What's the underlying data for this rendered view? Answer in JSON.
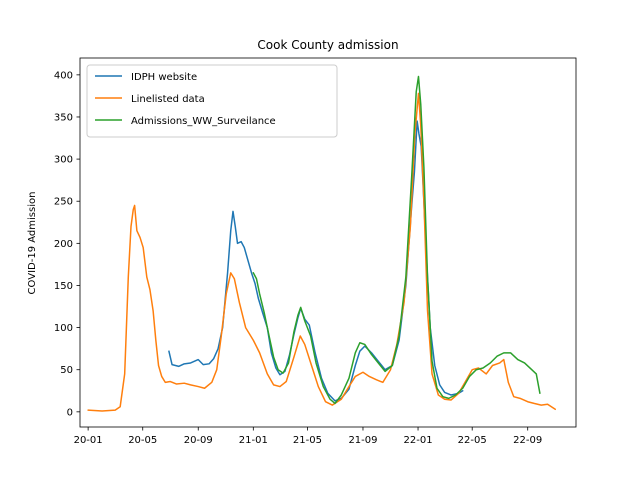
{
  "chart_data": {
    "type": "line",
    "title": "Cook County admission",
    "xlabel": "",
    "ylabel": "COVID-19 Admission",
    "x_axis_type": "date",
    "xlim": [
      "2019-12-14",
      "2022-12-17"
    ],
    "ylim": [
      -18,
      420
    ],
    "x_ticks": [
      {
        "date": "2020-01-01",
        "label": "20-01"
      },
      {
        "date": "2020-05-01",
        "label": "20-05"
      },
      {
        "date": "2020-09-01",
        "label": "20-09"
      },
      {
        "date": "2021-01-01",
        "label": "21-01"
      },
      {
        "date": "2021-05-01",
        "label": "21-05"
      },
      {
        "date": "2021-09-01",
        "label": "21-09"
      },
      {
        "date": "2022-01-01",
        "label": "22-01"
      },
      {
        "date": "2022-05-01",
        "label": "22-05"
      },
      {
        "date": "2022-09-01",
        "label": "22-09"
      }
    ],
    "y_ticks": [
      0,
      50,
      100,
      150,
      200,
      250,
      300,
      350,
      400
    ],
    "grid": false,
    "legend_position": "top-left",
    "series": [
      {
        "name": "IDPH website",
        "color": "#1f77b4",
        "points": [
          [
            "2020-06-28",
            72
          ],
          [
            "2020-07-05",
            56
          ],
          [
            "2020-07-20",
            54
          ],
          [
            "2020-08-01",
            57
          ],
          [
            "2020-08-15",
            58
          ],
          [
            "2020-09-01",
            62
          ],
          [
            "2020-09-12",
            56
          ],
          [
            "2020-09-25",
            57
          ],
          [
            "2020-10-05",
            63
          ],
          [
            "2020-10-15",
            75
          ],
          [
            "2020-10-25",
            100
          ],
          [
            "2020-11-05",
            165
          ],
          [
            "2020-11-12",
            215
          ],
          [
            "2020-11-17",
            238
          ],
          [
            "2020-11-22",
            220
          ],
          [
            "2020-11-27",
            200
          ],
          [
            "2020-12-05",
            202
          ],
          [
            "2020-12-12",
            195
          ],
          [
            "2020-12-20",
            180
          ],
          [
            "2020-12-28",
            165
          ],
          [
            "2021-01-05",
            152
          ],
          [
            "2021-01-12",
            135
          ],
          [
            "2021-01-22",
            117
          ],
          [
            "2021-02-01",
            100
          ],
          [
            "2021-02-10",
            70
          ],
          [
            "2021-02-20",
            52
          ],
          [
            "2021-03-01",
            44
          ],
          [
            "2021-03-12",
            48
          ],
          [
            "2021-03-22",
            67
          ],
          [
            "2021-04-01",
            92
          ],
          [
            "2021-04-10",
            112
          ],
          [
            "2021-04-16",
            123
          ],
          [
            "2021-04-25",
            110
          ],
          [
            "2021-05-05",
            103
          ],
          [
            "2021-05-18",
            70
          ],
          [
            "2021-06-01",
            40
          ],
          [
            "2021-06-15",
            22
          ],
          [
            "2021-07-01",
            13
          ],
          [
            "2021-07-15",
            16
          ],
          [
            "2021-08-01",
            27
          ],
          [
            "2021-08-15",
            55
          ],
          [
            "2021-08-25",
            72
          ],
          [
            "2021-09-05",
            78
          ],
          [
            "2021-09-20",
            70
          ],
          [
            "2021-10-05",
            60
          ],
          [
            "2021-10-20",
            50
          ],
          [
            "2021-11-05",
            55
          ],
          [
            "2021-11-20",
            85
          ],
          [
            "2021-12-05",
            150
          ],
          [
            "2021-12-18",
            245
          ],
          [
            "2021-12-24",
            285
          ],
          [
            "2021-12-30",
            345
          ],
          [
            "2022-01-03",
            330
          ],
          [
            "2022-01-08",
            315
          ],
          [
            "2022-01-13",
            260
          ],
          [
            "2022-01-20",
            180
          ],
          [
            "2022-01-28",
            100
          ],
          [
            "2022-02-07",
            55
          ],
          [
            "2022-02-18",
            32
          ],
          [
            "2022-03-01",
            23
          ],
          [
            "2022-03-15",
            20
          ],
          [
            "2022-04-01",
            22
          ],
          [
            "2022-04-10",
            25
          ]
        ]
      },
      {
        "name": "Linelisted data",
        "color": "#ff7f0e",
        "points": [
          [
            "2020-01-01",
            2
          ],
          [
            "2020-02-01",
            1
          ],
          [
            "2020-03-01",
            2
          ],
          [
            "2020-03-12",
            6
          ],
          [
            "2020-03-22",
            45
          ],
          [
            "2020-03-30",
            160
          ],
          [
            "2020-04-05",
            220
          ],
          [
            "2020-04-10",
            240
          ],
          [
            "2020-04-13",
            245
          ],
          [
            "2020-04-18",
            215
          ],
          [
            "2020-04-25",
            207
          ],
          [
            "2020-05-02",
            195
          ],
          [
            "2020-05-10",
            160
          ],
          [
            "2020-05-17",
            145
          ],
          [
            "2020-05-24",
            120
          ],
          [
            "2020-05-30",
            85
          ],
          [
            "2020-06-05",
            55
          ],
          [
            "2020-06-12",
            42
          ],
          [
            "2020-06-20",
            35
          ],
          [
            "2020-07-01",
            36
          ],
          [
            "2020-07-15",
            33
          ],
          [
            "2020-08-01",
            34
          ],
          [
            "2020-08-15",
            32
          ],
          [
            "2020-09-01",
            30
          ],
          [
            "2020-09-15",
            28
          ],
          [
            "2020-10-01",
            35
          ],
          [
            "2020-10-12",
            50
          ],
          [
            "2020-10-22",
            90
          ],
          [
            "2020-11-02",
            140
          ],
          [
            "2020-11-12",
            165
          ],
          [
            "2020-11-20",
            158
          ],
          [
            "2020-12-01",
            130
          ],
          [
            "2020-12-15",
            100
          ],
          [
            "2021-01-01",
            85
          ],
          [
            "2021-01-15",
            70
          ],
          [
            "2021-02-01",
            45
          ],
          [
            "2021-02-15",
            32
          ],
          [
            "2021-03-01",
            30
          ],
          [
            "2021-03-15",
            36
          ],
          [
            "2021-04-01",
            65
          ],
          [
            "2021-04-15",
            90
          ],
          [
            "2021-04-25",
            80
          ],
          [
            "2021-05-10",
            55
          ],
          [
            "2021-05-25",
            30
          ],
          [
            "2021-06-10",
            12
          ],
          [
            "2021-06-25",
            8
          ],
          [
            "2021-07-15",
            15
          ],
          [
            "2021-08-01",
            30
          ],
          [
            "2021-08-15",
            42
          ],
          [
            "2021-09-01",
            47
          ],
          [
            "2021-09-15",
            42
          ],
          [
            "2021-10-01",
            38
          ],
          [
            "2021-10-15",
            35
          ],
          [
            "2021-11-01",
            50
          ],
          [
            "2021-11-15",
            80
          ],
          [
            "2021-12-01",
            130
          ],
          [
            "2021-12-15",
            220
          ],
          [
            "2021-12-25",
            330
          ],
          [
            "2022-01-02",
            378
          ],
          [
            "2022-01-07",
            340
          ],
          [
            "2022-01-14",
            250
          ],
          [
            "2022-01-22",
            120
          ],
          [
            "2022-02-01",
            45
          ],
          [
            "2022-02-15",
            20
          ],
          [
            "2022-03-01",
            15
          ],
          [
            "2022-03-15",
            14
          ],
          [
            "2022-04-01",
            22
          ],
          [
            "2022-04-15",
            35
          ],
          [
            "2022-05-01",
            50
          ],
          [
            "2022-05-15",
            52
          ],
          [
            "2022-06-01",
            45
          ],
          [
            "2022-06-15",
            55
          ],
          [
            "2022-07-01",
            58
          ],
          [
            "2022-07-10",
            62
          ],
          [
            "2022-07-20",
            35
          ],
          [
            "2022-08-01",
            18
          ],
          [
            "2022-08-15",
            16
          ],
          [
            "2022-09-01",
            12
          ],
          [
            "2022-09-15",
            10
          ],
          [
            "2022-10-01",
            8
          ],
          [
            "2022-10-15",
            9
          ],
          [
            "2022-11-01",
            3
          ]
        ]
      },
      {
        "name": "Admissions_WW_Surveilance",
        "color": "#2ca02c",
        "points": [
          [
            "2021-01-01",
            165
          ],
          [
            "2021-01-08",
            158
          ],
          [
            "2021-01-15",
            140
          ],
          [
            "2021-01-25",
            118
          ],
          [
            "2021-02-05",
            90
          ],
          [
            "2021-02-15",
            65
          ],
          [
            "2021-02-25",
            50
          ],
          [
            "2021-03-08",
            46
          ],
          [
            "2021-03-20",
            58
          ],
          [
            "2021-04-01",
            95
          ],
          [
            "2021-04-10",
            115
          ],
          [
            "2021-04-16",
            124
          ],
          [
            "2021-04-25",
            108
          ],
          [
            "2021-05-08",
            90
          ],
          [
            "2021-05-20",
            58
          ],
          [
            "2021-06-05",
            30
          ],
          [
            "2021-06-20",
            15
          ],
          [
            "2021-07-01",
            10
          ],
          [
            "2021-07-15",
            20
          ],
          [
            "2021-08-01",
            40
          ],
          [
            "2021-08-15",
            70
          ],
          [
            "2021-08-25",
            82
          ],
          [
            "2021-09-05",
            80
          ],
          [
            "2021-09-20",
            68
          ],
          [
            "2021-10-05",
            58
          ],
          [
            "2021-10-20",
            48
          ],
          [
            "2021-11-05",
            55
          ],
          [
            "2021-11-20",
            90
          ],
          [
            "2021-12-05",
            160
          ],
          [
            "2021-12-18",
            280
          ],
          [
            "2021-12-28",
            380
          ],
          [
            "2022-01-02",
            398
          ],
          [
            "2022-01-07",
            365
          ],
          [
            "2022-01-14",
            290
          ],
          [
            "2022-01-22",
            160
          ],
          [
            "2022-02-01",
            60
          ],
          [
            "2022-02-12",
            28
          ],
          [
            "2022-02-25",
            18
          ],
          [
            "2022-03-10",
            16
          ],
          [
            "2022-03-25",
            20
          ],
          [
            "2022-04-10",
            28
          ],
          [
            "2022-04-25",
            42
          ],
          [
            "2022-05-10",
            50
          ],
          [
            "2022-05-25",
            52
          ],
          [
            "2022-06-10",
            58
          ],
          [
            "2022-06-25",
            66
          ],
          [
            "2022-07-10",
            70
          ],
          [
            "2022-07-25",
            70
          ],
          [
            "2022-08-10",
            62
          ],
          [
            "2022-08-25",
            58
          ],
          [
            "2022-09-10",
            50
          ],
          [
            "2022-09-20",
            45
          ],
          [
            "2022-09-28",
            22
          ]
        ]
      }
    ]
  }
}
